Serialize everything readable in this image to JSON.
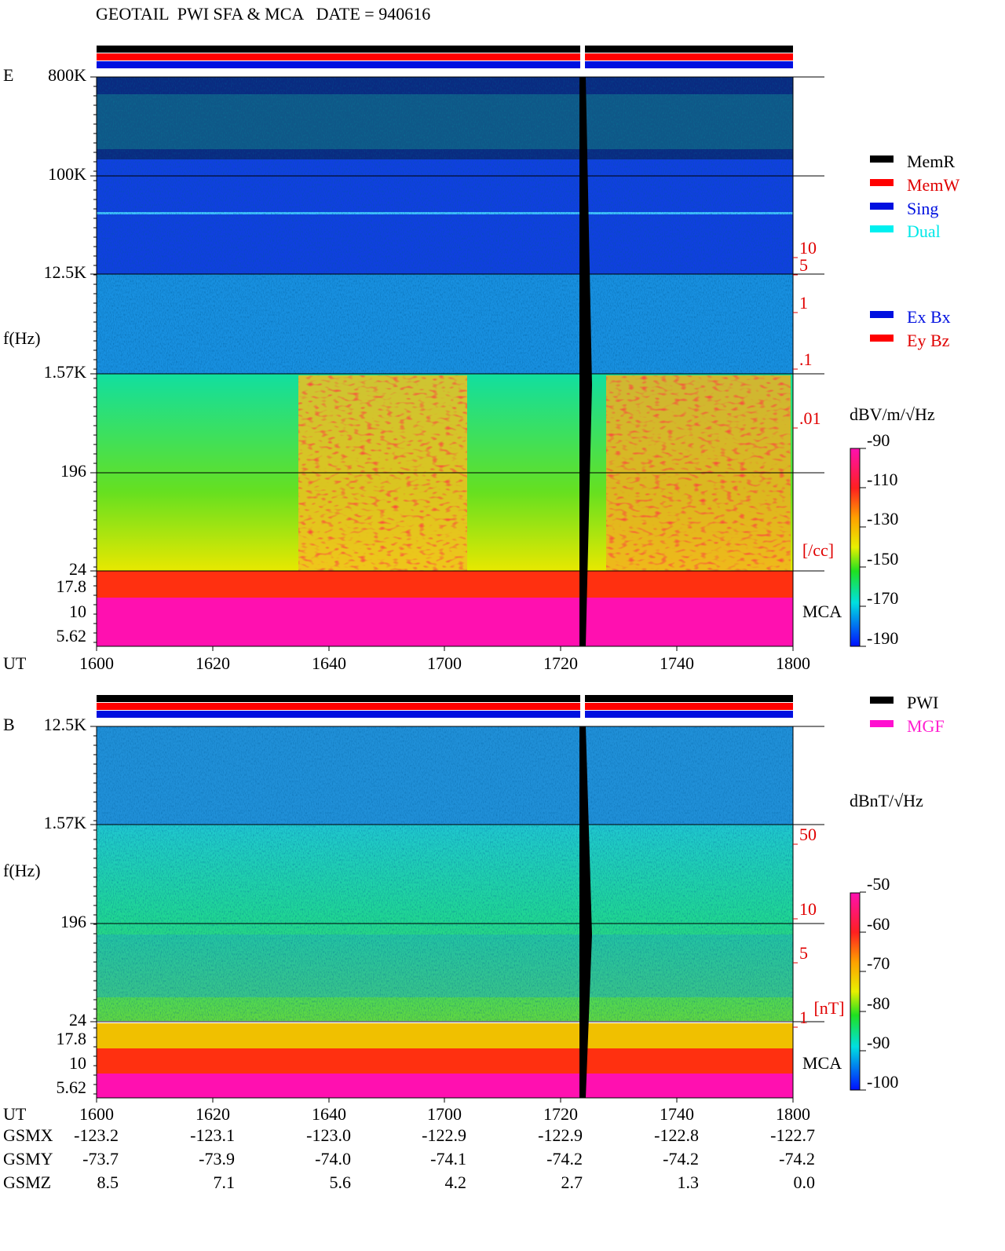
{
  "title": "GEOTAIL  PWI SFA & MCA   DATE = 940616",
  "panels": [
    {
      "label": "E",
      "y_axis_title": "f(Hz)",
      "freq_labels": [
        "800K",
        "100K",
        "12.5K",
        "1.57K",
        "196",
        "24",
        "17.8",
        "10",
        "5.62"
      ],
      "mca_label": "MCA",
      "right_scale": {
        "labels": [
          "10",
          "5",
          "1",
          ".1",
          ".01"
        ],
        "unit": "[/cc]"
      },
      "colorbar": {
        "unit": "dBV/m/√Hz",
        "ticks": [
          "-90",
          "-110",
          "-130",
          "-150",
          "-170",
          "-190"
        ]
      }
    },
    {
      "label": "B",
      "y_axis_title": "f(Hz)",
      "freq_labels": [
        "12.5K",
        "1.57K",
        "196",
        "24",
        "17.8",
        "10",
        "5.62"
      ],
      "mca_label": "MCA",
      "right_scale": {
        "labels": [
          "50",
          "10",
          "5",
          "1"
        ],
        "unit": "[nT]"
      },
      "colorbar": {
        "unit": "dBnT/√Hz",
        "ticks": [
          "-50",
          "-60",
          "-70",
          "-80",
          "-90",
          "-100"
        ]
      }
    }
  ],
  "time_axis": {
    "label": "UT",
    "ticks": [
      "1600",
      "1620",
      "1640",
      "1700",
      "1720",
      "1740",
      "1800"
    ]
  },
  "legend_modes": [
    "MemR",
    "MemW",
    "Sing",
    "Dual"
  ],
  "legend_components": [
    "Ex Bx",
    "Ey Bz"
  ],
  "legend_sources": [
    "PWI",
    "MGF"
  ],
  "orbit": [
    {
      "label": "GSMX",
      "values": [
        "-123.2",
        "-123.1",
        "-123.0",
        "-122.9",
        "-122.9",
        "-122.8",
        "-122.7"
      ]
    },
    {
      "label": "GSMY",
      "values": [
        "-73.7",
        "-73.9",
        "-74.0",
        "-74.1",
        "-74.2",
        "-74.2",
        "-74.2"
      ]
    },
    {
      "label": "GSMZ",
      "values": [
        "8.5",
        "7.1",
        "5.6",
        "4.2",
        "2.7",
        "1.3",
        "0.0"
      ]
    }
  ]
}
